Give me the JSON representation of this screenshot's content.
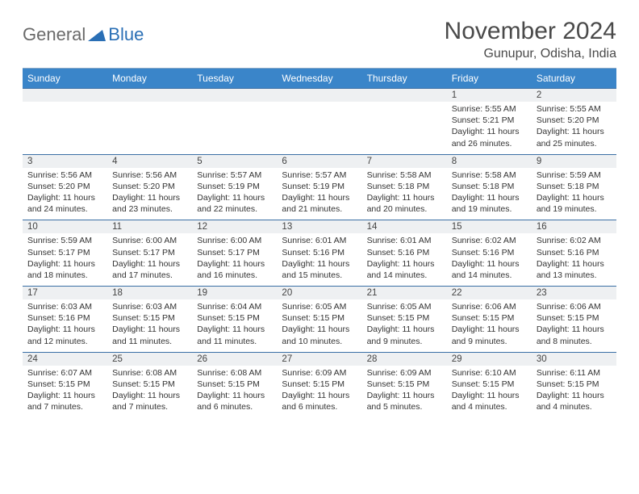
{
  "branding": {
    "part1": "General",
    "part2": "Blue"
  },
  "title": "November 2024",
  "location": "Gunupur, Odisha, India",
  "colors": {
    "header_bg": "#3a85c9",
    "header_text": "#ffffff",
    "rule": "#3a6fa5",
    "daynum_bg": "#eef0f2",
    "logo_gray": "#6a6a6a",
    "logo_blue": "#2a6fb5"
  },
  "weekdays": [
    "Sunday",
    "Monday",
    "Tuesday",
    "Wednesday",
    "Thursday",
    "Friday",
    "Saturday"
  ],
  "weeks": [
    [
      null,
      null,
      null,
      null,
      null,
      {
        "n": "1",
        "sunrise": "5:55 AM",
        "sunset": "5:21 PM",
        "dl": "11 hours and 26 minutes."
      },
      {
        "n": "2",
        "sunrise": "5:55 AM",
        "sunset": "5:20 PM",
        "dl": "11 hours and 25 minutes."
      }
    ],
    [
      {
        "n": "3",
        "sunrise": "5:56 AM",
        "sunset": "5:20 PM",
        "dl": "11 hours and 24 minutes."
      },
      {
        "n": "4",
        "sunrise": "5:56 AM",
        "sunset": "5:20 PM",
        "dl": "11 hours and 23 minutes."
      },
      {
        "n": "5",
        "sunrise": "5:57 AM",
        "sunset": "5:19 PM",
        "dl": "11 hours and 22 minutes."
      },
      {
        "n": "6",
        "sunrise": "5:57 AM",
        "sunset": "5:19 PM",
        "dl": "11 hours and 21 minutes."
      },
      {
        "n": "7",
        "sunrise": "5:58 AM",
        "sunset": "5:18 PM",
        "dl": "11 hours and 20 minutes."
      },
      {
        "n": "8",
        "sunrise": "5:58 AM",
        "sunset": "5:18 PM",
        "dl": "11 hours and 19 minutes."
      },
      {
        "n": "9",
        "sunrise": "5:59 AM",
        "sunset": "5:18 PM",
        "dl": "11 hours and 19 minutes."
      }
    ],
    [
      {
        "n": "10",
        "sunrise": "5:59 AM",
        "sunset": "5:17 PM",
        "dl": "11 hours and 18 minutes."
      },
      {
        "n": "11",
        "sunrise": "6:00 AM",
        "sunset": "5:17 PM",
        "dl": "11 hours and 17 minutes."
      },
      {
        "n": "12",
        "sunrise": "6:00 AM",
        "sunset": "5:17 PM",
        "dl": "11 hours and 16 minutes."
      },
      {
        "n": "13",
        "sunrise": "6:01 AM",
        "sunset": "5:16 PM",
        "dl": "11 hours and 15 minutes."
      },
      {
        "n": "14",
        "sunrise": "6:01 AM",
        "sunset": "5:16 PM",
        "dl": "11 hours and 14 minutes."
      },
      {
        "n": "15",
        "sunrise": "6:02 AM",
        "sunset": "5:16 PM",
        "dl": "11 hours and 14 minutes."
      },
      {
        "n": "16",
        "sunrise": "6:02 AM",
        "sunset": "5:16 PM",
        "dl": "11 hours and 13 minutes."
      }
    ],
    [
      {
        "n": "17",
        "sunrise": "6:03 AM",
        "sunset": "5:16 PM",
        "dl": "11 hours and 12 minutes."
      },
      {
        "n": "18",
        "sunrise": "6:03 AM",
        "sunset": "5:15 PM",
        "dl": "11 hours and 11 minutes."
      },
      {
        "n": "19",
        "sunrise": "6:04 AM",
        "sunset": "5:15 PM",
        "dl": "11 hours and 11 minutes."
      },
      {
        "n": "20",
        "sunrise": "6:05 AM",
        "sunset": "5:15 PM",
        "dl": "11 hours and 10 minutes."
      },
      {
        "n": "21",
        "sunrise": "6:05 AM",
        "sunset": "5:15 PM",
        "dl": "11 hours and 9 minutes."
      },
      {
        "n": "22",
        "sunrise": "6:06 AM",
        "sunset": "5:15 PM",
        "dl": "11 hours and 9 minutes."
      },
      {
        "n": "23",
        "sunrise": "6:06 AM",
        "sunset": "5:15 PM",
        "dl": "11 hours and 8 minutes."
      }
    ],
    [
      {
        "n": "24",
        "sunrise": "6:07 AM",
        "sunset": "5:15 PM",
        "dl": "11 hours and 7 minutes."
      },
      {
        "n": "25",
        "sunrise": "6:08 AM",
        "sunset": "5:15 PM",
        "dl": "11 hours and 7 minutes."
      },
      {
        "n": "26",
        "sunrise": "6:08 AM",
        "sunset": "5:15 PM",
        "dl": "11 hours and 6 minutes."
      },
      {
        "n": "27",
        "sunrise": "6:09 AM",
        "sunset": "5:15 PM",
        "dl": "11 hours and 6 minutes."
      },
      {
        "n": "28",
        "sunrise": "6:09 AM",
        "sunset": "5:15 PM",
        "dl": "11 hours and 5 minutes."
      },
      {
        "n": "29",
        "sunrise": "6:10 AM",
        "sunset": "5:15 PM",
        "dl": "11 hours and 4 minutes."
      },
      {
        "n": "30",
        "sunrise": "6:11 AM",
        "sunset": "5:15 PM",
        "dl": "11 hours and 4 minutes."
      }
    ]
  ],
  "labels": {
    "sunrise": "Sunrise: ",
    "sunset": "Sunset: ",
    "daylight": "Daylight: "
  }
}
